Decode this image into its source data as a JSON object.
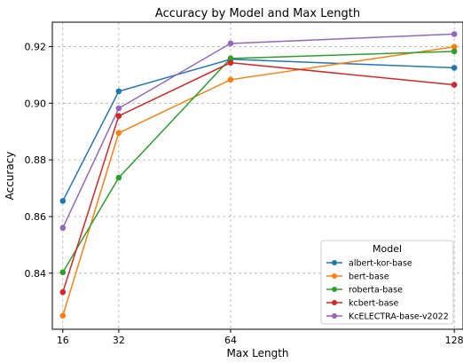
{
  "chart_data": {
    "type": "line",
    "title": "Accuracy by Model and Max Length",
    "xlabel": "Max Length",
    "ylabel": "Accuracy",
    "x": [
      16,
      32,
      64,
      128
    ],
    "xticks": [
      "16",
      "32",
      "64",
      "128"
    ],
    "yticks": [
      "0.84",
      "0.86",
      "0.88",
      "0.90",
      "0.92"
    ],
    "xlim": [
      13,
      130.5
    ],
    "ylim": [
      0.8202,
      0.9286
    ],
    "grid": true,
    "legend_title": "Model",
    "legend_position": "lower-right",
    "series": [
      {
        "name": "albert-kor-base",
        "color": "#1f77b4",
        "values": [
          0.8655,
          0.9042,
          0.9155,
          0.9125
        ]
      },
      {
        "name": "bert-base",
        "color": "#ff7f0e",
        "values": [
          0.825,
          0.8895,
          0.9083,
          0.9199
        ]
      },
      {
        "name": "roberta-base",
        "color": "#2ca02c",
        "values": [
          0.8403,
          0.8737,
          0.9158,
          0.9183
        ]
      },
      {
        "name": "kcbert-base",
        "color": "#d62728",
        "values": [
          0.8333,
          0.8955,
          0.9143,
          0.9065
        ]
      },
      {
        "name": "KcELECTRA-base-v2022",
        "color": "#9467bd",
        "values": [
          0.856,
          0.8982,
          0.9211,
          0.9244
        ]
      }
    ]
  }
}
